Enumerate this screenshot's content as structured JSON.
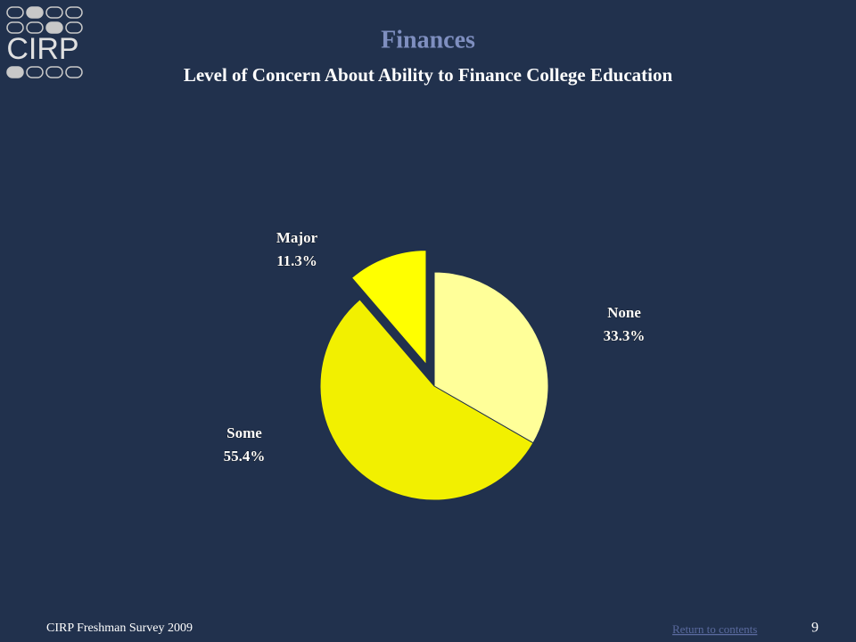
{
  "chart_data": {
    "type": "pie",
    "title": "Finances",
    "subtitle": "Level of Concern About Ability to Finance College Education",
    "categories": [
      "None",
      "Some",
      "Major"
    ],
    "values": [
      33.3,
      55.4,
      11.3
    ],
    "value_labels": [
      "33.3%",
      "55.4%",
      "11.3%"
    ],
    "colors": [
      "#ffff99",
      "#f2f000",
      "#ffff00"
    ]
  },
  "logo": {
    "text": "CIRP"
  },
  "footer": {
    "source": "CIRP Freshman Survey 2009",
    "link": "Return to contents",
    "page": "9"
  }
}
